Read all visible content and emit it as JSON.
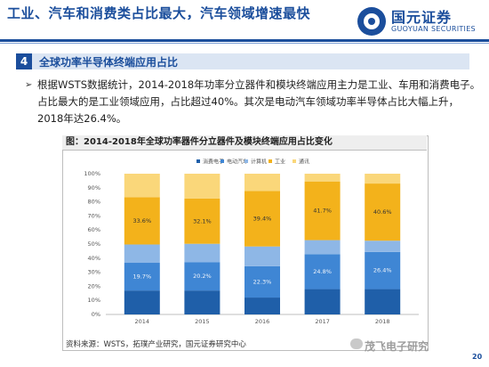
{
  "header": {
    "title": "工业、汽车和消费类占比最大，汽车领域增速最快",
    "logo_cn": "国元证券",
    "logo_en": "GUOYUAN SECURITIES"
  },
  "section": {
    "number": "4",
    "label": "全球功率半导体终端应用占比"
  },
  "body": {
    "line1": "根据WSTS数据统计，2014-2018年功率分立器件和模块终端应用主力是工业、车用和消费电子。",
    "line2": "占比最大的是工业领域应用，占比超过40%。其次是电动汽车领域功率半导体占比大幅上升，",
    "line3": "2018年达26.4%。"
  },
  "figure": {
    "caption": "图：2014-2018年全球功率器件分立器件及模块终端应用占比变化"
  },
  "chart_data": {
    "type": "bar",
    "stacked": true,
    "categories": [
      "2014",
      "2015",
      "2016",
      "2017",
      "2018"
    ],
    "series": [
      {
        "name": "消费电子",
        "color": "#1f5fa9",
        "values": [
          17.0,
          17.0,
          12.0,
          18.0,
          18.0
        ]
      },
      {
        "name": "电动汽车",
        "color": "#3f86d4",
        "values": [
          19.7,
          20.2,
          22.3,
          24.8,
          26.4
        ]
      },
      {
        "name": "计算机",
        "color": "#8eb7e6",
        "values": [
          13.0,
          13.0,
          14.0,
          10.0,
          8.0
        ]
      },
      {
        "name": "工业",
        "color": "#f3b21b",
        "values": [
          33.6,
          32.1,
          39.4,
          41.7,
          40.6
        ]
      },
      {
        "name": "通讯",
        "color": "#fad77a",
        "values": [
          16.7,
          17.7,
          12.3,
          5.5,
          7.0
        ]
      }
    ],
    "data_labels": {
      "电动汽车": [
        "19.7%",
        "20.2%",
        "22.3%",
        "24.8%",
        "26.4%"
      ],
      "工业": [
        "33.6%",
        "32.1%",
        "39.4%",
        "41.7%",
        "40.6%"
      ]
    },
    "ylim": [
      0,
      100
    ],
    "yticks": [
      "0%",
      "10%",
      "20%",
      "30%",
      "40%",
      "50%",
      "60%",
      "70%",
      "80%",
      "90%",
      "100%"
    ],
    "legend_position": "top-right",
    "grid": false
  },
  "footer": {
    "source": "资料来源：WSTS，拓璞产业研究，国元证券研究中心",
    "watermark": "茂飞电子研究",
    "page": "20"
  }
}
